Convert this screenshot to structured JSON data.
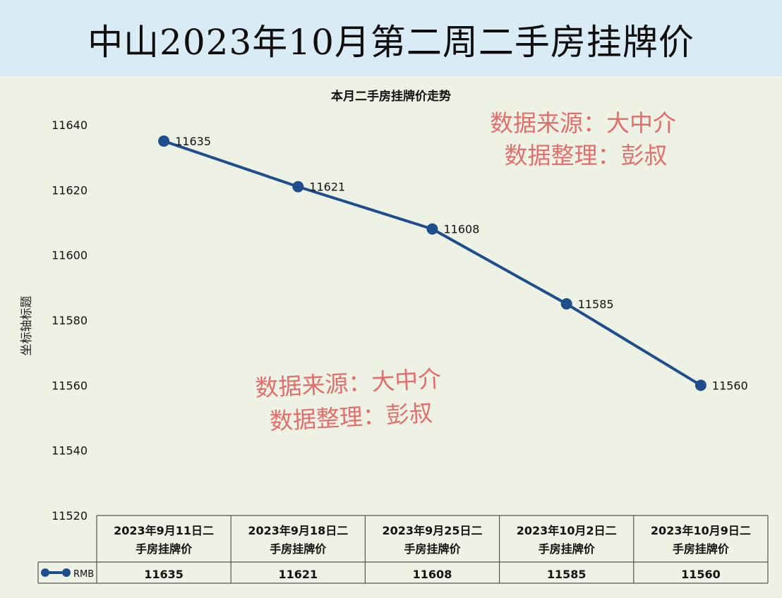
{
  "header": {
    "title": "中山2023年10月第二周二手房挂牌价"
  },
  "chart_data": {
    "type": "line",
    "title": "本月二手房挂牌价走势",
    "ylabel": "坐标轴标题",
    "xlabel": "",
    "ylim": [
      11520,
      11640
    ],
    "yticks": [
      11520,
      11540,
      11560,
      11580,
      11600,
      11620,
      11640
    ],
    "categories": [
      "2023年9月11日二手房挂牌价",
      "2023年9月18日二手房挂牌价",
      "2023年9月25日二手房挂牌价",
      "2023年10月2日二手房挂牌价",
      "2023年10月9日二手房挂牌价"
    ],
    "category_lines": [
      [
        "2023年9月11日二",
        "手房挂牌价"
      ],
      [
        "2023年9月18日二",
        "手房挂牌价"
      ],
      [
        "2023年9月25日二",
        "手房挂牌价"
      ],
      [
        "2023年10月2日二",
        "手房挂牌价"
      ],
      [
        "2023年10月9日二",
        "手房挂牌价"
      ]
    ],
    "series": [
      {
        "name": "RMB",
        "values": [
          11635,
          11621,
          11608,
          11585,
          11560
        ],
        "color": "#1f4e8c"
      }
    ],
    "data_table": true,
    "grid": false,
    "legend": "data-table"
  },
  "watermarks": [
    {
      "line1": "数据来源：大中介",
      "line2": "数据整理：彭叔"
    },
    {
      "line1": "数据来源：大中介",
      "line2": "数据整理：彭叔"
    }
  ],
  "colors": {
    "line": "#1f4e8c",
    "watermark": "#e0706e",
    "panel": "#eef2e4",
    "header": "#d9ebf5"
  }
}
